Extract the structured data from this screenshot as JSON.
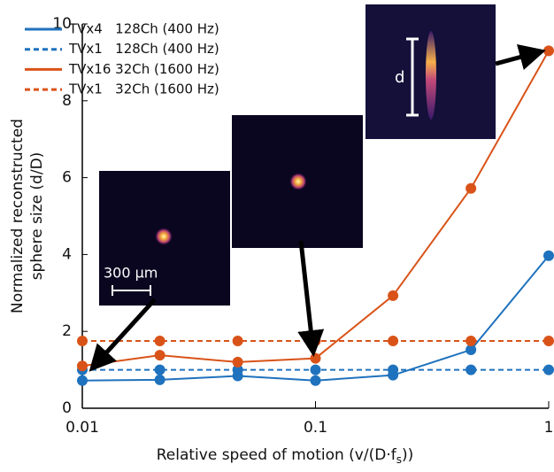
{
  "chart_data": {
    "type": "line",
    "xlabel": [
      "Relative speed of motion (v/(D·f",
      "s",
      "))"
    ],
    "ylabel": [
      "Normalized reconstructed",
      "sphere size (d/D)"
    ],
    "x": [
      0.01,
      0.0215,
      0.0464,
      0.1,
      0.215,
      0.464,
      1
    ],
    "xscale": "log",
    "xlim": [
      0.01,
      1
    ],
    "xticks": [
      0.01,
      0.1,
      1
    ],
    "ylim": [
      0,
      10
    ],
    "yticks": [
      0,
      2,
      4,
      6,
      8,
      10
    ],
    "legend": "upper left",
    "series": [
      {
        "name": "TVx4   128Ch (400 Hz)",
        "color": "#1f72bd",
        "dash": false,
        "values": [
          0.72,
          0.74,
          0.84,
          0.72,
          0.86,
          1.52,
          3.97
        ]
      },
      {
        "name": "TVx1   128Ch (400 Hz)",
        "color": "#1f72bd",
        "dash": true,
        "values": [
          1.0,
          1.0,
          1.0,
          1.0,
          1.0,
          1.0,
          1.0
        ]
      },
      {
        "name": "TVx16 32Ch (1600 Hz)",
        "color": "#d95319",
        "dash": false,
        "values": [
          1.1,
          1.38,
          1.2,
          1.3,
          2.93,
          5.72,
          9.3
        ]
      },
      {
        "name": "TVx1   32Ch (1600 Hz)",
        "color": "#d95319",
        "dash": true,
        "values": [
          1.75,
          1.75,
          1.75,
          1.75,
          1.75,
          1.75,
          1.75
        ]
      }
    ],
    "annotations": {
      "scale_bar": "300 µm",
      "size": "d"
    }
  }
}
